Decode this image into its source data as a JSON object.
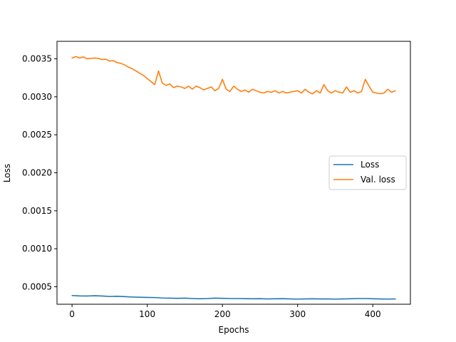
{
  "chart_data": {
    "type": "line",
    "xlabel": "Epochs",
    "ylabel": "Loss",
    "xlim": [
      -20,
      450
    ],
    "ylim": [
      0.00027,
      0.00373
    ],
    "x_ticks": [
      0,
      100,
      200,
      300,
      400
    ],
    "x_tick_labels": [
      "0",
      "100",
      "200",
      "300",
      "400"
    ],
    "y_ticks": [
      0.0005,
      0.001,
      0.0015,
      0.002,
      0.0025,
      0.003,
      0.0035
    ],
    "y_tick_labels": [
      "0.0005",
      "0.0010",
      "0.0015",
      "0.0020",
      "0.0025",
      "0.0030",
      "0.0035"
    ],
    "legend_position": "center-right",
    "series": [
      {
        "name": "Loss",
        "color": "#1f77b4",
        "x": [
          0,
          10,
          20,
          30,
          40,
          50,
          60,
          70,
          80,
          90,
          100,
          110,
          120,
          130,
          140,
          150,
          160,
          170,
          180,
          190,
          200,
          210,
          220,
          230,
          240,
          250,
          260,
          270,
          280,
          290,
          300,
          310,
          320,
          330,
          340,
          350,
          360,
          370,
          380,
          390,
          400,
          410,
          420,
          430
        ],
        "y": [
          0.000385,
          0.00038,
          0.000378,
          0.000382,
          0.000378,
          0.000372,
          0.000375,
          0.00037,
          0.000365,
          0.000362,
          0.00036,
          0.000358,
          0.000352,
          0.00035,
          0.000348,
          0.00035,
          0.000345,
          0.000342,
          0.000345,
          0.00035,
          0.000348,
          0.000345,
          0.000345,
          0.000343,
          0.000342,
          0.000343,
          0.00034,
          0.000342,
          0.000343,
          0.00034,
          0.000338,
          0.00034,
          0.000342,
          0.00034,
          0.00034,
          0.000338,
          0.00034,
          0.000342,
          0.000345,
          0.000345,
          0.000342,
          0.00034,
          0.000338,
          0.00034
        ]
      },
      {
        "name": "Val. loss",
        "color": "#ff7f0e",
        "x": [
          0,
          5,
          10,
          15,
          20,
          25,
          30,
          35,
          40,
          45,
          50,
          55,
          60,
          65,
          70,
          75,
          80,
          85,
          90,
          95,
          100,
          105,
          110,
          115,
          120,
          125,
          130,
          135,
          140,
          145,
          150,
          155,
          160,
          165,
          170,
          175,
          180,
          185,
          190,
          195,
          200,
          205,
          210,
          215,
          220,
          225,
          230,
          235,
          240,
          245,
          250,
          255,
          260,
          265,
          270,
          275,
          280,
          285,
          290,
          295,
          300,
          305,
          310,
          315,
          320,
          325,
          330,
          335,
          340,
          345,
          350,
          355,
          360,
          365,
          370,
          375,
          380,
          385,
          390,
          395,
          400,
          405,
          410,
          415,
          420,
          425,
          430
        ],
        "y": [
          0.00351,
          0.00353,
          0.00351,
          0.003525,
          0.0035,
          0.003505,
          0.00351,
          0.003505,
          0.00349,
          0.003495,
          0.00347,
          0.003475,
          0.00345,
          0.00344,
          0.00342,
          0.00339,
          0.00337,
          0.00334,
          0.00331,
          0.00328,
          0.00324,
          0.0032,
          0.00316,
          0.00334,
          0.00318,
          0.00315,
          0.00317,
          0.00312,
          0.00314,
          0.00313,
          0.00311,
          0.00314,
          0.0031,
          0.00314,
          0.00312,
          0.00309,
          0.00311,
          0.00313,
          0.00308,
          0.00311,
          0.00323,
          0.0031,
          0.00307,
          0.00314,
          0.0031,
          0.00307,
          0.00309,
          0.00306,
          0.0031,
          0.00308,
          0.00306,
          0.00305,
          0.00307,
          0.00306,
          0.00308,
          0.00305,
          0.00307,
          0.00305,
          0.00306,
          0.00307,
          0.00308,
          0.00305,
          0.0031,
          0.00306,
          0.00304,
          0.00308,
          0.00305,
          0.00316,
          0.00308,
          0.00305,
          0.00308,
          0.00306,
          0.00305,
          0.00313,
          0.00306,
          0.00308,
          0.00305,
          0.00307,
          0.00323,
          0.00314,
          0.00306,
          0.00305,
          0.00304,
          0.00305,
          0.0031,
          0.00306,
          0.00308
        ]
      }
    ]
  }
}
